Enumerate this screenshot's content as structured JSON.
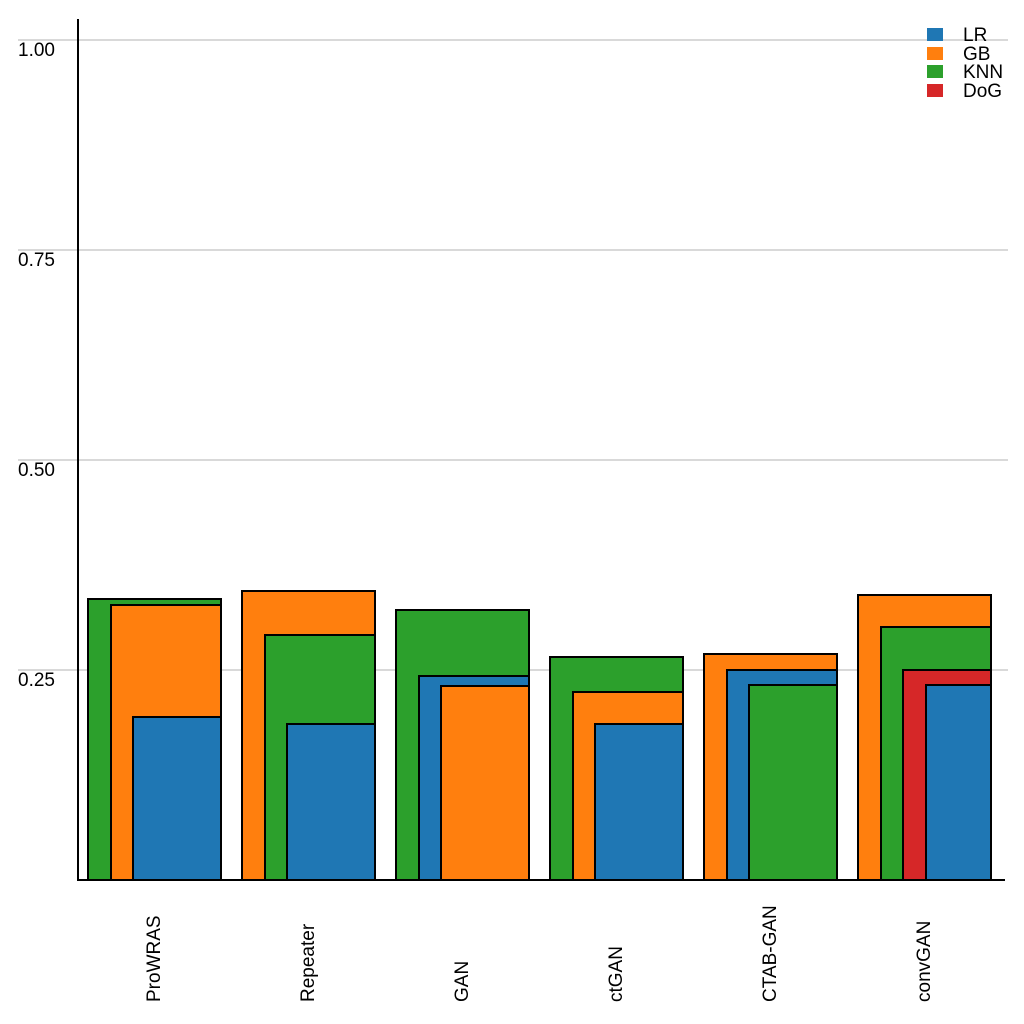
{
  "chart_data": {
    "type": "bar",
    "variant": "overlapping-layered-bars-right-aligned",
    "title": "",
    "xlabel": "",
    "ylabel": "",
    "categories": [
      "ProWRAS",
      "Repeater",
      "GAN",
      "ctGAN",
      "CTAB-GAN",
      "convGAN"
    ],
    "series": [
      {
        "name": "LR",
        "color": "#1f77b4",
        "values": [
          0.195,
          0.187,
          0.244,
          0.187,
          0.251,
          0.233
        ]
      },
      {
        "name": "GB",
        "color": "#ff7f0e",
        "values": [
          0.329,
          0.345,
          0.232,
          0.225,
          0.27,
          0.341
        ]
      },
      {
        "name": "KNN",
        "color": "#2ca02c",
        "values": [
          0.336,
          0.293,
          0.323,
          0.267,
          0.233,
          0.302
        ]
      },
      {
        "name": "DoG",
        "color": "#d62728",
        "values": [
          null,
          null,
          null,
          null,
          null,
          0.251
        ]
      }
    ],
    "ylim": [
      0,
      1.025
    ],
    "y_ticks": [
      {
        "label": "0.25",
        "value": 0.25
      },
      {
        "label": "0.50",
        "value": 0.5
      },
      {
        "label": "0.75",
        "value": 0.75
      },
      {
        "label": "1.00",
        "value": 1.0
      }
    ],
    "grid": "horizontal-only",
    "legend_position": "top-right",
    "bar_order_note": "within each category, taller bars are drawn wider and behind; all bars right-aligned per category"
  },
  "legend": {
    "items": [
      {
        "label": "LR",
        "color": "#1f77b4"
      },
      {
        "label": "GB",
        "color": "#ff7f0e"
      },
      {
        "label": "KNN",
        "color": "#2ca02c"
      },
      {
        "label": "DoG",
        "color": "#d62728"
      }
    ]
  },
  "colors": {
    "background": "#ffffff",
    "gridline": "#d9d9d9",
    "axis": "#000000",
    "bar_border": "#000000",
    "text": "#000000"
  }
}
